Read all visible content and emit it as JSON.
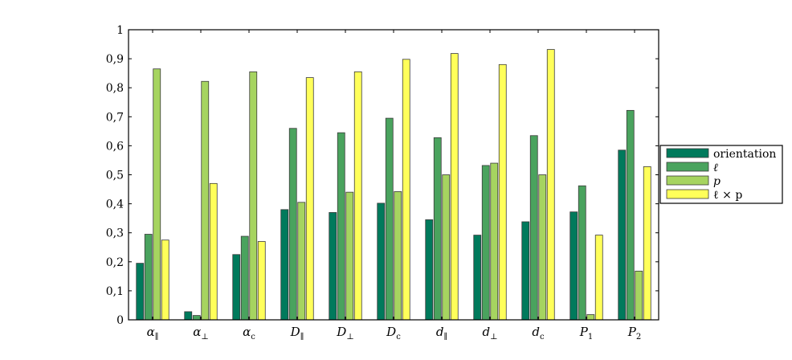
{
  "chart_data": {
    "type": "bar",
    "categories": [
      "α∥",
      "α⊥",
      "αc",
      "D∥",
      "D⊥",
      "Dc",
      "d∥",
      "d⊥",
      "dc",
      "P1",
      "P2"
    ],
    "category_labels": [
      {
        "base": "α",
        "sub": "∥"
      },
      {
        "base": "α",
        "sub": "⊥"
      },
      {
        "base": "α",
        "sub": "c"
      },
      {
        "base": "D",
        "sub": "∥"
      },
      {
        "base": "D",
        "sub": "⊥"
      },
      {
        "base": "D",
        "sub": "c"
      },
      {
        "base": "d",
        "sub": "∥"
      },
      {
        "base": "d",
        "sub": "⊥"
      },
      {
        "base": "d",
        "sub": "c"
      },
      {
        "base": "P",
        "sub": "1"
      },
      {
        "base": "P",
        "sub": "2"
      }
    ],
    "series": [
      {
        "name": "orientation",
        "color": "#007a5c",
        "values": [
          0.195,
          0.028,
          0.225,
          0.38,
          0.37,
          0.402,
          0.345,
          0.292,
          0.338,
          0.372,
          0.585
        ]
      },
      {
        "name": "ℓ",
        "color": "#4aa35e",
        "values": [
          0.295,
          0.015,
          0.288,
          0.66,
          0.645,
          0.695,
          0.628,
          0.532,
          0.635,
          0.462,
          0.722
        ]
      },
      {
        "name": "p",
        "color": "#a6d460",
        "values": [
          0.865,
          0.822,
          0.855,
          0.405,
          0.44,
          0.442,
          0.5,
          0.54,
          0.5,
          0.018,
          0.168
        ]
      },
      {
        "name": "ℓ × p",
        "color": "#ffff5a",
        "values": [
          0.275,
          0.47,
          0.27,
          0.835,
          0.855,
          0.898,
          0.918,
          0.88,
          0.932,
          0.292,
          0.528
        ]
      }
    ],
    "ylim": [
      0,
      1
    ],
    "yticks": [
      "0",
      "0,1",
      "0,2",
      "0,3",
      "0,4",
      "0,5",
      "0,6",
      "0,7",
      "0,8",
      "0,9",
      "1"
    ],
    "legend_position": "right",
    "grid": false
  }
}
